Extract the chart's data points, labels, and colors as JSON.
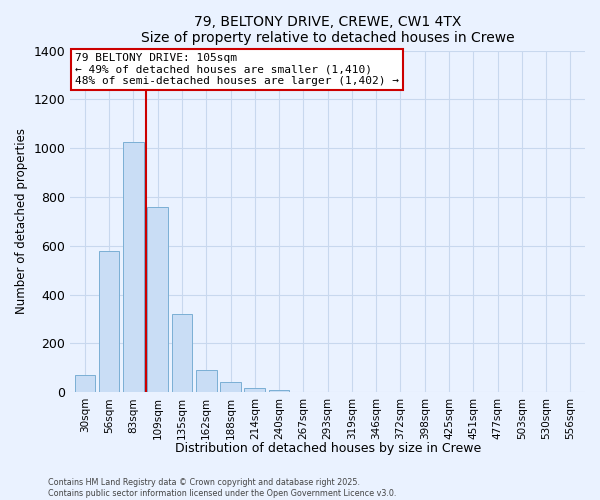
{
  "title": "79, BELTONY DRIVE, CREWE, CW1 4TX",
  "subtitle": "Size of property relative to detached houses in Crewe",
  "xlabel": "Distribution of detached houses by size in Crewe",
  "ylabel": "Number of detached properties",
  "bar_labels": [
    "30sqm",
    "56sqm",
    "83sqm",
    "109sqm",
    "135sqm",
    "162sqm",
    "188sqm",
    "214sqm",
    "240sqm",
    "267sqm",
    "293sqm",
    "319sqm",
    "346sqm",
    "372sqm",
    "398sqm",
    "425sqm",
    "451sqm",
    "477sqm",
    "503sqm",
    "530sqm",
    "556sqm"
  ],
  "bar_values": [
    70,
    580,
    1025,
    760,
    320,
    90,
    40,
    18,
    8,
    2,
    2,
    0,
    0,
    0,
    0,
    0,
    0,
    0,
    0,
    0,
    0
  ],
  "bar_color": "#c9ddf5",
  "bar_edge_color": "#7bafd4",
  "vline_color": "#cc0000",
  "ylim": [
    0,
    1400
  ],
  "yticks": [
    0,
    200,
    400,
    600,
    800,
    1000,
    1200,
    1400
  ],
  "annotation_title": "79 BELTONY DRIVE: 105sqm",
  "annotation_line1": "← 49% of detached houses are smaller (1,410)",
  "annotation_line2": "48% of semi-detached houses are larger (1,402) →",
  "annotation_box_color": "#ffffff",
  "annotation_box_edge": "#cc0000",
  "footer_line1": "Contains HM Land Registry data © Crown copyright and database right 2025.",
  "footer_line2": "Contains public sector information licensed under the Open Government Licence v3.0.",
  "bg_color": "#eaf2ff",
  "grid_color": "#c8d8ee"
}
